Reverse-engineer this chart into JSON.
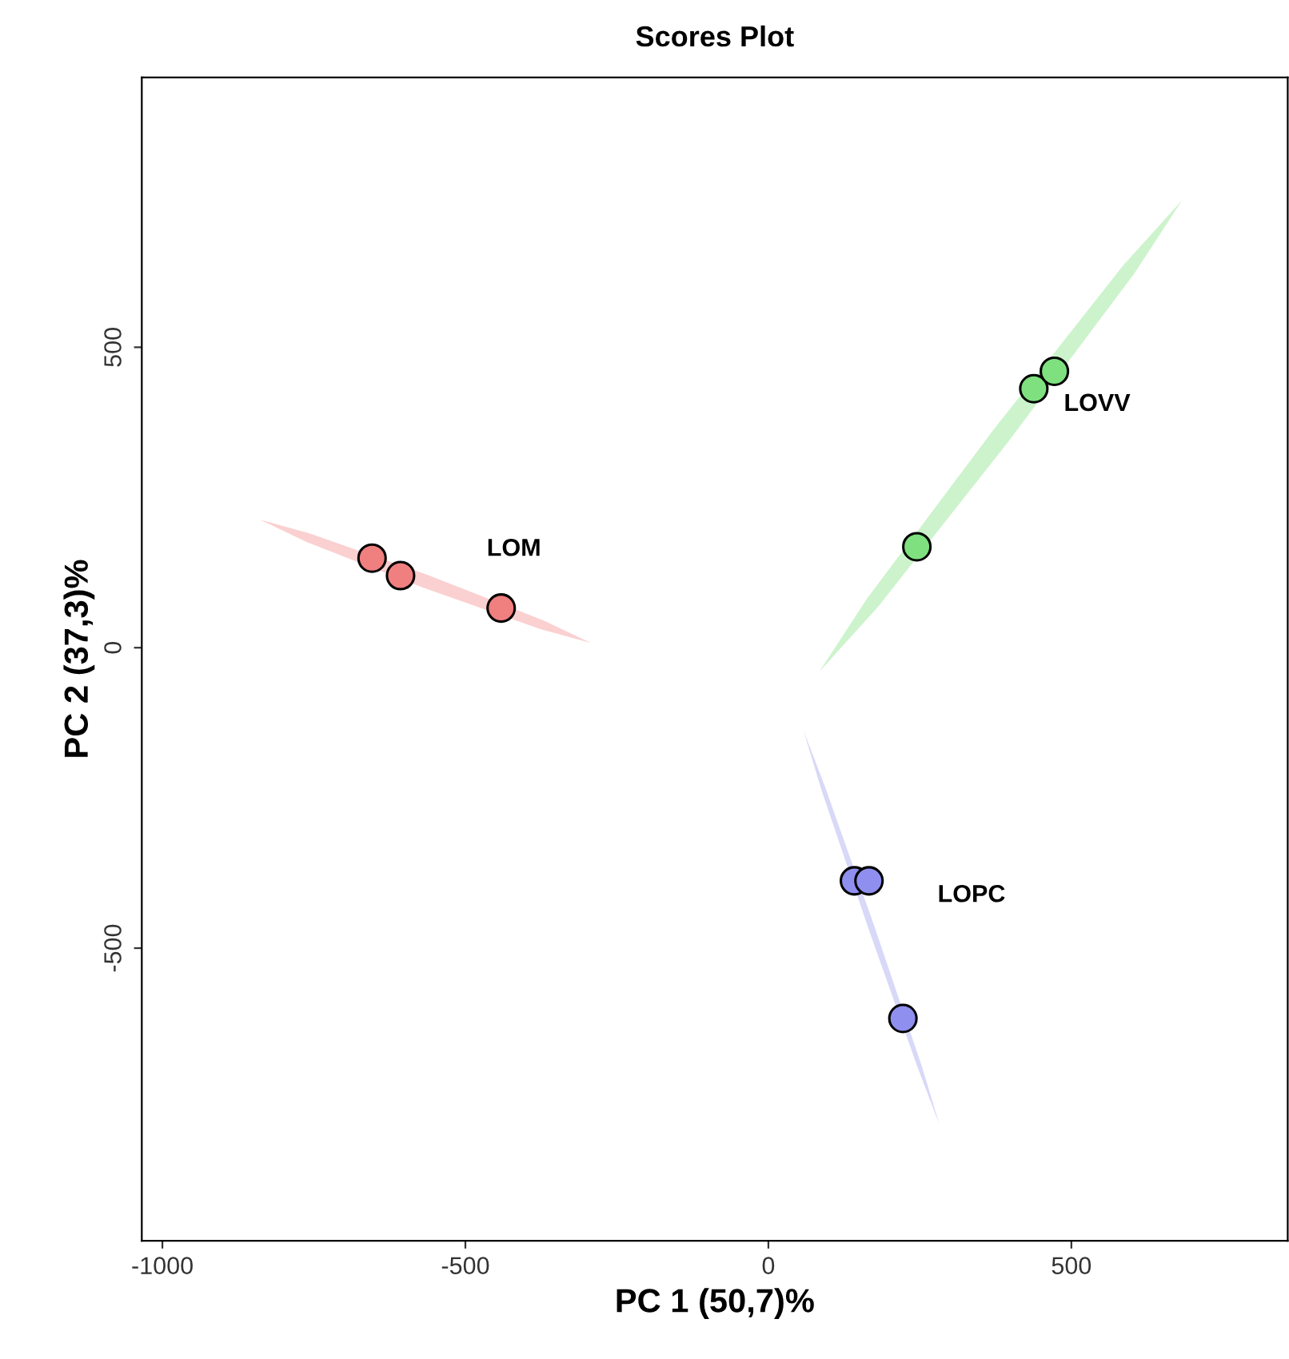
{
  "chart_data": {
    "type": "scatter",
    "title": "Scores Plot",
    "xlabel": "PC 1 (50,7)%",
    "ylabel": "PC 2 (37,3)%",
    "xlim": [
      -1034,
      857
    ],
    "ylim": [
      -987,
      949
    ],
    "xticks": [
      -1000,
      -500,
      0,
      500
    ],
    "yticks": [
      -500,
      0,
      500
    ],
    "grid": false,
    "series": [
      {
        "type": "area",
        "color": "#fbd0d0",
        "x": [
          -293,
          -376,
          -570,
          -762,
          -839,
          -756,
          -562,
          -370
        ],
        "values": [
          8,
          31,
          100,
          176,
          213,
          190,
          121,
          45
        ]
      },
      {
        "type": "area",
        "color": "#cdf3cd",
        "x": [
          683,
          604,
          396,
          181,
          84,
          163,
          371,
          586
        ],
        "values": [
          745,
          623,
          343,
          68,
          -40,
          82,
          362,
          637
        ]
      },
      {
        "type": "area",
        "color": "#d8d8f8",
        "x": [
          282,
          246,
          165,
          87,
          58,
          94,
          175,
          253
        ],
        "values": [
          -793,
          -698,
          -467,
          -235,
          -138,
          -233,
          -464,
          -696
        ]
      },
      {
        "name": "LOM",
        "marker": "circle",
        "color": "#f07f7f",
        "x": [
          -654,
          -607,
          -441
        ],
        "values": [
          149,
          120,
          66
        ]
      },
      {
        "name": "LOVV",
        "marker": "circle",
        "color": "#7fe07f",
        "x": [
          245,
          438,
          472
        ],
        "values": [
          168,
          431,
          460
        ]
      },
      {
        "name": "LOPC",
        "marker": "circle",
        "color": "#8f8ff0",
        "x": [
          142,
          166,
          222
        ],
        "values": [
          -388,
          -388,
          -617
        ]
      }
    ]
  }
}
